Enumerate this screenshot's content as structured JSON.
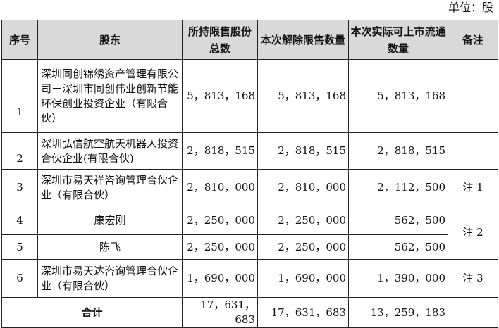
{
  "unit": "单位：股",
  "headers": [
    "序号",
    "股东",
    "所持限售股份总数",
    "本次解除限售数量",
    "本次实际可上市流通数量",
    "备注"
  ],
  "rows": [
    {
      "no": "1",
      "holder": "深圳同创锦绣资产管理有限公司－深圳市同创伟业创新节能环保创业投资企业（有限合伙）",
      "total": "5，813，168",
      "release": "5，813，168",
      "tradable": "5，813，168",
      "note": ""
    },
    {
      "no": "2",
      "holder": "深圳弘信航空航天机器人投资合伙企业(有限合伙)",
      "total": "2，818，515",
      "release": "2，818，515",
      "tradable": "2，818，515",
      "note": ""
    },
    {
      "no": "3",
      "holder": "深圳市易天祥咨询管理合伙企业（有限合伙）",
      "total": "2，810，000",
      "release": "2，810，000",
      "tradable": "2，112，500",
      "note": "注 1"
    },
    {
      "no": "4",
      "holder": "康宏刚",
      "total": "2，250，000",
      "release": "2，250，000",
      "tradable": "562，500",
      "note": "注 2"
    },
    {
      "no": "5",
      "holder": "陈飞",
      "total": "2，250，000",
      "release": "2，250，000",
      "tradable": "562，500",
      "note": ""
    },
    {
      "no": "6",
      "holder": "深圳市易天达咨询管理合伙企业（有限合伙）",
      "total": "1，690，000",
      "release": "1，690，000",
      "tradable": "1，390，000",
      "note": "注 3"
    }
  ],
  "total_row": {
    "label": "合计",
    "total": "17，631，683",
    "release": "17，631，683",
    "tradable": "13，259，183"
  }
}
